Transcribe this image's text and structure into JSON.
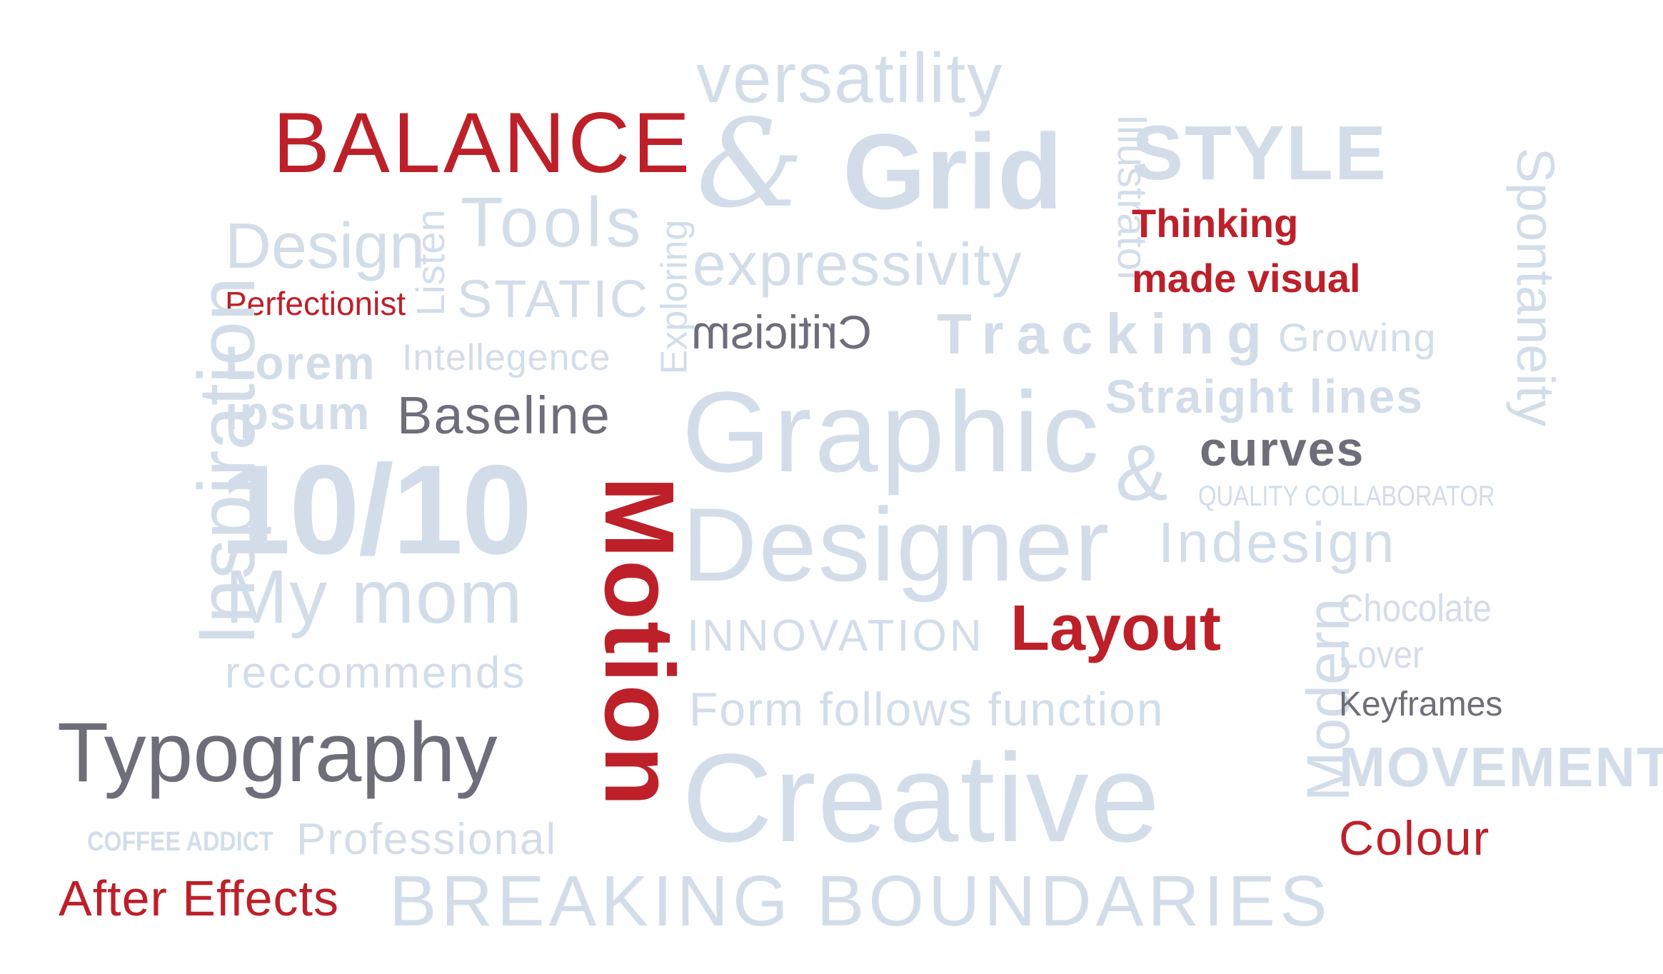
{
  "colors": {
    "light": "#d3ddea",
    "red": "#bd2029",
    "gray": "#6e6e7a",
    "background": "#ffffff"
  },
  "words": {
    "versatility": "versatility",
    "balance": "BALANCE",
    "and_symbol": "&",
    "grid": "Grid",
    "illustrator": "Illustrator",
    "style": "STYLE",
    "spontaneity": "Spontaneity",
    "thinking": "Thinking",
    "made_visual": "made visual",
    "design": "Design",
    "listen": "Listen",
    "tools": "Tools",
    "exploring": "Exploring",
    "expressivity": "expressivity",
    "perfectionist": "Perfectionist",
    "static": "STATIC",
    "inspiration": "Inspiration",
    "criticism": "Criticism",
    "tracking": "Tracking",
    "growing": "Growing",
    "lorem": "Lorem",
    "intellegence": "Intellegence",
    "ipsum": "ipsum",
    "baseline": "Baseline",
    "graphic": "Graphic",
    "straight_lines": "Straight lines",
    "ampersand": "&",
    "curves": "curves",
    "quality_collaborator": "QUALITY COLLABORATOR",
    "ten_ten": "10/10",
    "motion": "Motion",
    "designer": "Designer",
    "indesign": "Indesign",
    "my_mom": "My mom",
    "reccommends": "reccommends",
    "innovation": "INNOVATION",
    "layout": "Layout",
    "modern": "Modern",
    "chocolate": "Chocolate",
    "lover": "Lover",
    "keyframes": "Keyframes",
    "form_follows_function": "Form follows function",
    "typography": "Typography",
    "creative": "Creative",
    "movement": "MOVEMENT",
    "colour": "Colour",
    "coffee_addict": "COFFEE ADDICT",
    "professional": "Professional",
    "after_effects": "After Effects",
    "breaking_boundaries": "BREAKING BOUNDARIES"
  }
}
